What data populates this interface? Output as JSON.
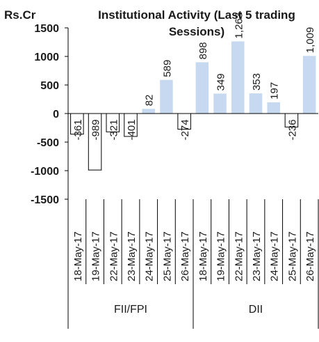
{
  "chart_data": {
    "type": "bar",
    "title_lines": [
      "Institutional Activity (Last 5 trading",
      "Sessions)"
    ],
    "y_unit": "Rs.Cr",
    "ylim": [
      -1500,
      1500
    ],
    "y_ticks": [
      1500,
      1000,
      500,
      0,
      -500,
      -1000,
      -1500
    ],
    "y_tick_labels": [
      "1500",
      "1000",
      "500",
      "0",
      "-500",
      "-1000",
      "-1500"
    ],
    "grid": false,
    "legend": "none",
    "positive_color": "#c6d9f0",
    "negative_color": "#ffffff",
    "bar_outline_color": "#000000",
    "groups": [
      {
        "name": "FII/FPI",
        "categories": [
          "18-May-17",
          "19-May-17",
          "22-May-17",
          "23-May-17",
          "24-May-17",
          "25-May-17",
          "26-May-17"
        ],
        "values": [
          -361,
          -989,
          -321,
          -401,
          82,
          589,
          -274
        ],
        "labels": [
          "-361",
          "-989",
          "-321",
          "-401",
          "82",
          "589",
          "-274"
        ]
      },
      {
        "name": "DII",
        "categories": [
          "18-May-17",
          "19-May-17",
          "22-May-17",
          "23-May-17",
          "24-May-17",
          "25-May-17",
          "26-May-17"
        ],
        "values": [
          898,
          349,
          1263,
          353,
          197,
          -236,
          1009
        ],
        "labels": [
          "898",
          "349",
          "1,263",
          "353",
          "197",
          "-236",
          "1,009"
        ]
      }
    ]
  }
}
